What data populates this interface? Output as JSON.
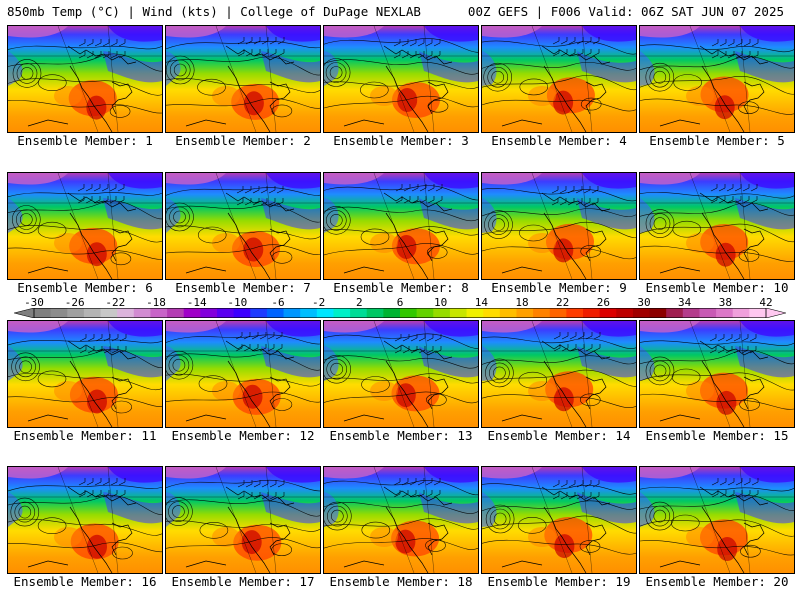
{
  "header": {
    "left": "850mb Temp (°C) | Wind (kts) | College of DuPage NEXLAB",
    "right": "00Z GEFS | F006 Valid: 06Z SAT JUN 07 2025"
  },
  "members": [
    {
      "label": "Ensemble Member: 1"
    },
    {
      "label": "Ensemble Member: 2"
    },
    {
      "label": "Ensemble Member: 3"
    },
    {
      "label": "Ensemble Member: 4"
    },
    {
      "label": "Ensemble Member: 5"
    },
    {
      "label": "Ensemble Member: 6"
    },
    {
      "label": "Ensemble Member: 7"
    },
    {
      "label": "Ensemble Member: 8"
    },
    {
      "label": "Ensemble Member: 9"
    },
    {
      "label": "Ensemble Member: 10"
    },
    {
      "label": "Ensemble Member: 11"
    },
    {
      "label": "Ensemble Member: 12"
    },
    {
      "label": "Ensemble Member: 13"
    },
    {
      "label": "Ensemble Member: 14"
    },
    {
      "label": "Ensemble Member: 15"
    },
    {
      "label": "Ensemble Member: 16"
    },
    {
      "label": "Ensemble Member: 17"
    },
    {
      "label": "Ensemble Member: 18"
    },
    {
      "label": "Ensemble Member: 19"
    },
    {
      "label": "Ensemble Member: 20"
    }
  ],
  "colorbar": {
    "ticks": [
      "-30",
      "-26",
      "-22",
      "-18",
      "-14",
      "-10",
      "-6",
      "-2",
      "2",
      "6",
      "10",
      "14",
      "18",
      "22",
      "26",
      "30",
      "34",
      "38",
      "42"
    ],
    "colors": [
      "#7f7f7f",
      "#8c8c8c",
      "#a0a0a0",
      "#b4b4b4",
      "#c8c8c8",
      "#dcb4dc",
      "#d28cd2",
      "#c864c8",
      "#b43cb4",
      "#a000c8",
      "#8200dc",
      "#5a00f0",
      "#3c00ff",
      "#1e3cff",
      "#0064ff",
      "#0096ff",
      "#00beff",
      "#00e6ff",
      "#00f0c8",
      "#00dc96",
      "#00c864",
      "#00b432",
      "#32c800",
      "#64d200",
      "#96dc00",
      "#c8e600",
      "#f0f000",
      "#ffdc00",
      "#ffbe00",
      "#ffa000",
      "#ff8200",
      "#ff6400",
      "#ff3c00",
      "#f01e00",
      "#dc0000",
      "#be0000",
      "#a00000",
      "#8c0000",
      "#a01e50",
      "#b43c8c",
      "#c85ab4",
      "#dc78c8",
      "#f0a0dc",
      "#ffc8f0"
    ]
  }
}
